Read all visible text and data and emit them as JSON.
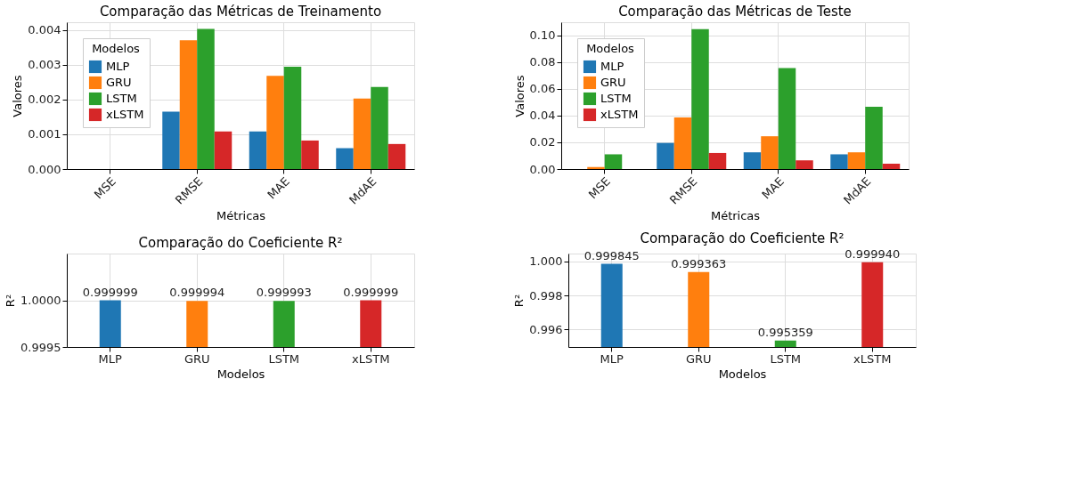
{
  "chart_data": [
    {
      "type": "bar",
      "title": "Comparação das Métricas de Treinamento",
      "xlabel": "Métricas",
      "ylabel": "Valores",
      "legend_title": "Modelos",
      "legend": "top left",
      "grid": true,
      "categories": [
        "MSE",
        "RMSE",
        "MAE",
        "MdAE"
      ],
      "ylim": [
        0,
        0.00422
      ],
      "yticks": [
        {
          "value": 0,
          "label": "0.000"
        },
        {
          "value": 0.001,
          "label": "0.001"
        },
        {
          "value": 0.002,
          "label": "0.002"
        },
        {
          "value": 0.003,
          "label": "0.003"
        },
        {
          "value": 0.004,
          "label": "0.004"
        }
      ],
      "series": [
        {
          "name": "MLP",
          "color": "#1f77b4",
          "values": [
            0,
            0.00165,
            0.00108,
            0.0006
          ]
        },
        {
          "name": "GRU",
          "color": "#ff7f0e",
          "values": [
            0,
            0.0037,
            0.00268,
            0.00203
          ]
        },
        {
          "name": "LSTM",
          "color": "#2ca02c",
          "values": [
            0,
            0.00403,
            0.00294,
            0.00236
          ]
        },
        {
          "name": "xLSTM",
          "color": "#d62728",
          "values": [
            0,
            0.00108,
            0.00082,
            0.00072
          ]
        }
      ]
    },
    {
      "type": "bar",
      "title": "Comparação das Métricas de Teste",
      "xlabel": "Métricas",
      "ylabel": "Valores",
      "legend_title": "Modelos",
      "legend": "top left",
      "grid": true,
      "categories": [
        "MSE",
        "RMSE",
        "MAE",
        "MdAE"
      ],
      "ylim": [
        0,
        0.1097
      ],
      "yticks": [
        {
          "value": 0,
          "label": "0.00"
        },
        {
          "value": 0.02,
          "label": "0.02"
        },
        {
          "value": 0.04,
          "label": "0.04"
        },
        {
          "value": 0.06,
          "label": "0.06"
        },
        {
          "value": 0.08,
          "label": "0.08"
        },
        {
          "value": 0.1,
          "label": "0.10"
        }
      ],
      "series": [
        {
          "name": "MLP",
          "color": "#1f77b4",
          "values": [
            0,
            0.0195,
            0.0125,
            0.011
          ]
        },
        {
          "name": "GRU",
          "color": "#ff7f0e",
          "values": [
            0.0015,
            0.0385,
            0.0245,
            0.0125
          ]
        },
        {
          "name": "LSTM",
          "color": "#2ca02c",
          "values": [
            0.011,
            0.1045,
            0.0755,
            0.0465
          ]
        },
        {
          "name": "xLSTM",
          "color": "#d62728",
          "values": [
            0,
            0.012,
            0.0065,
            0.004
          ]
        }
      ]
    },
    {
      "type": "bar",
      "title": "Comparação do Coeficiente R²",
      "xlabel": "Modelos",
      "ylabel": "R²",
      "grid": true,
      "categories": [
        "MLP",
        "GRU",
        "LSTM",
        "xLSTM"
      ],
      "ylim": [
        0.9995,
        1.0005
      ],
      "yticks": [
        {
          "value": 0.9995,
          "label": "0.9995"
        },
        {
          "value": 1,
          "label": "1.0000"
        }
      ],
      "values": [
        0.999999,
        0.999994,
        0.999993,
        0.999999
      ],
      "colors": [
        "#1f77b4",
        "#ff7f0e",
        "#2ca02c",
        "#d62728"
      ],
      "value_labels": [
        "0.999999",
        "0.999994",
        "0.999993",
        "0.999999"
      ]
    },
    {
      "type": "bar",
      "title": "Comparação do Coeficiente R²",
      "xlabel": "Modelos",
      "ylabel": "R²",
      "grid": true,
      "categories": [
        "MLP",
        "GRU",
        "LSTM",
        "xLSTM"
      ],
      "ylim": [
        0.99498,
        1.00045
      ],
      "yticks": [
        {
          "value": 0.996,
          "label": "0.996"
        },
        {
          "value": 0.998,
          "label": "0.998"
        },
        {
          "value": 1,
          "label": "1.000"
        }
      ],
      "values": [
        0.999845,
        0.999363,
        0.995359,
        0.99994
      ],
      "colors": [
        "#1f77b4",
        "#ff7f0e",
        "#2ca02c",
        "#d62728"
      ],
      "value_labels": [
        "0.999845",
        "0.999363",
        "0.995359",
        "0.999940"
      ]
    }
  ]
}
